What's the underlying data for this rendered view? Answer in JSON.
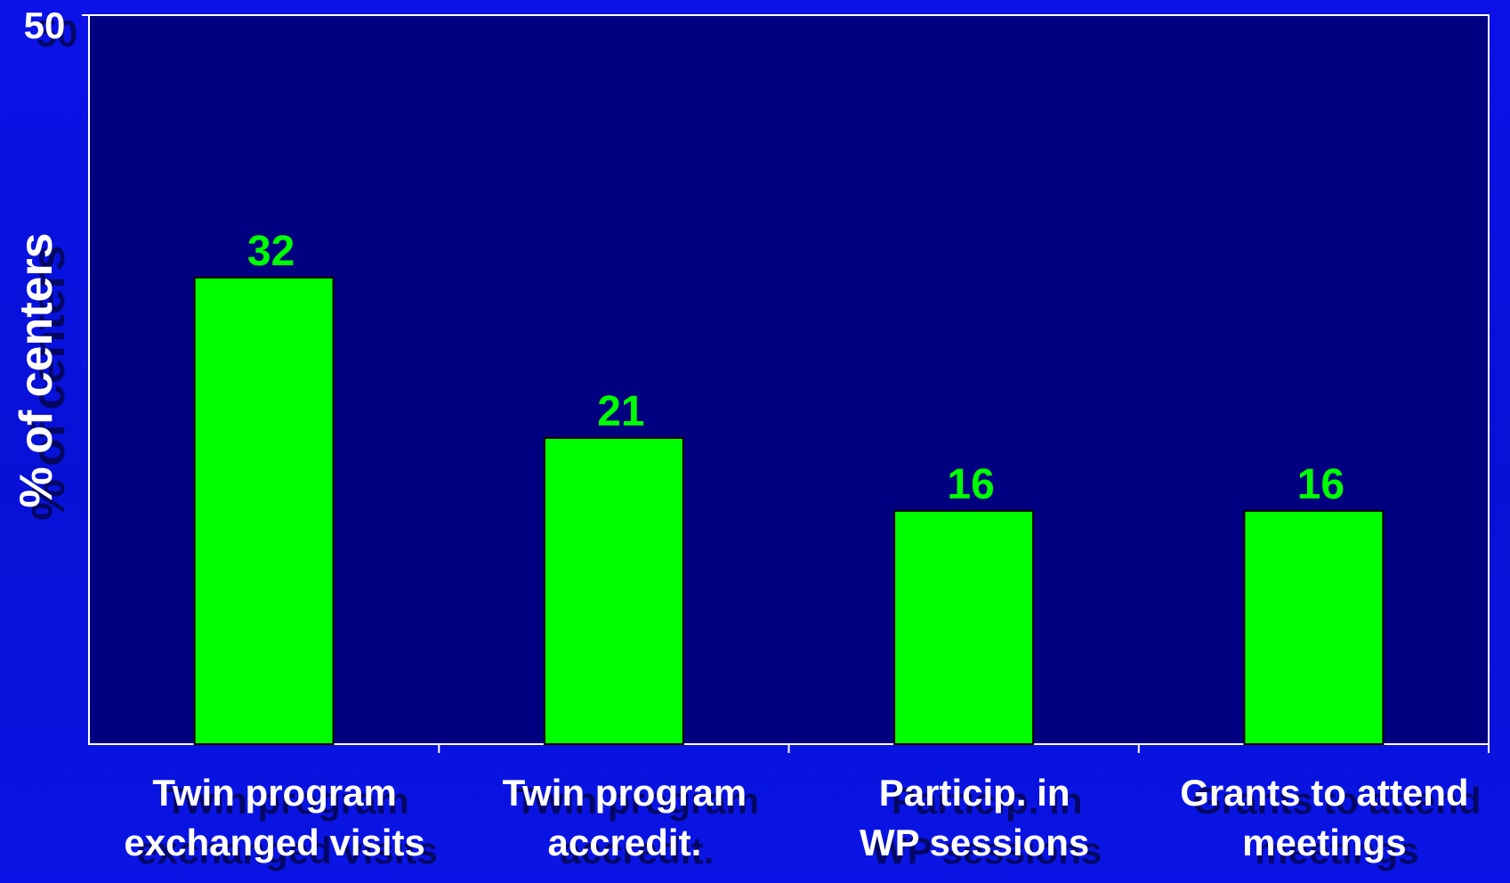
{
  "colors": {
    "background": "#0a12e8",
    "plot_area": "#000080",
    "bar_fill": "#00ff00",
    "bar_stroke": "#000000",
    "data_label": "#00ff00",
    "text": "#ffffff",
    "text_shadow": "#000000",
    "axis": "#ffffff"
  },
  "chart_data": {
    "type": "bar",
    "title": "",
    "xlabel": "",
    "ylabel": "% of centers",
    "ylim": [
      0,
      50
    ],
    "y_ticks": [
      "50"
    ],
    "categories": [
      [
        "Twin program",
        "exchanged visits"
      ],
      [
        "Twin program",
        "accredit."
      ],
      [
        "Particip. in",
        "WP sessions"
      ],
      [
        "Grants to attend",
        "meetings"
      ]
    ],
    "values": [
      32,
      21,
      16,
      16
    ],
    "data_labels": [
      "32",
      "21",
      "16",
      "16"
    ],
    "legend": "none",
    "grid": false
  }
}
